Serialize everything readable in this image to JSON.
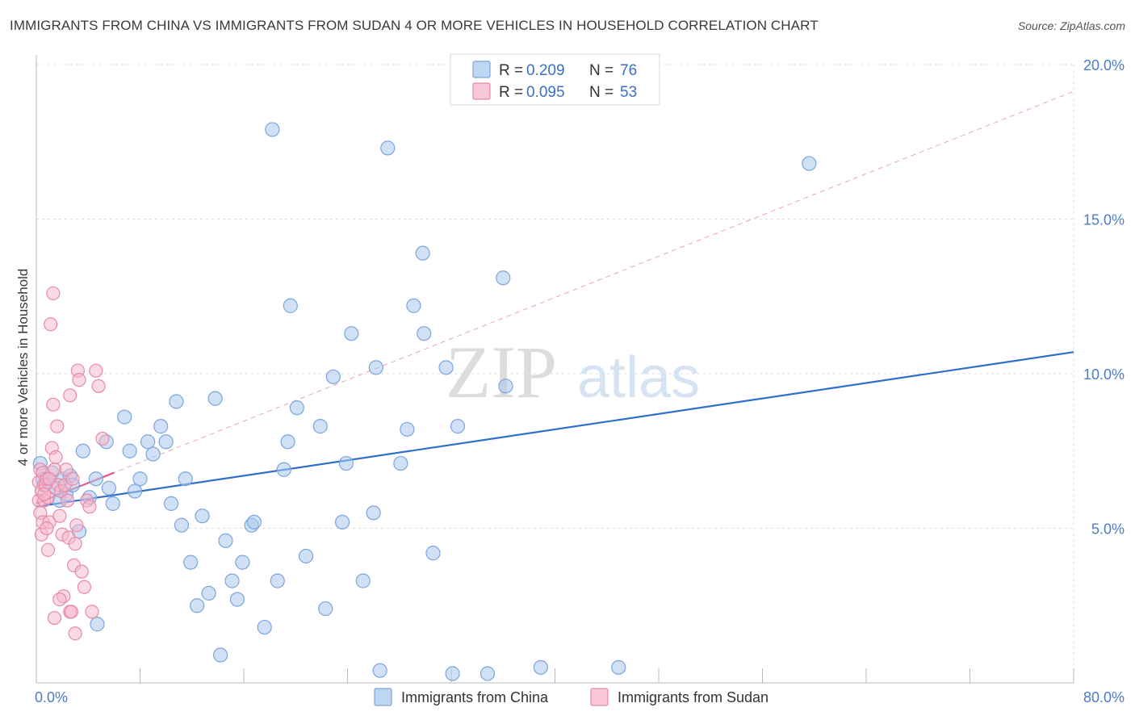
{
  "header": {
    "title": "IMMIGRANTS FROM CHINA VS IMMIGRANTS FROM SUDAN 4 OR MORE VEHICLES IN HOUSEHOLD CORRELATION CHART",
    "source": "Source: ZipAtlas.com"
  },
  "watermark": {
    "zip": "ZIP",
    "atlas": "atlas"
  },
  "colors": {
    "china_fill": "#a9c8ee",
    "china_stroke": "#7aa5dd",
    "china_line": "#2f6fcb",
    "sudan_fill": "#f6b6ca",
    "sudan_stroke": "#e889a8",
    "sudan_line": "#e0588a",
    "grid": "#dddddd",
    "tick_label": "#4a7cc7"
  },
  "legend": {
    "rows": [
      {
        "r_label": "R = ",
        "r_value": "0.209",
        "n_label": "N = ",
        "n_value": "76"
      },
      {
        "r_label": "R = ",
        "r_value": "0.095",
        "n_label": "N = ",
        "n_value": "53"
      }
    ]
  },
  "bottom_legend": [
    "Immigrants from China",
    "Immigrants from Sudan"
  ],
  "chart_data": {
    "type": "scatter",
    "title": "IMMIGRANTS FROM CHINA VS IMMIGRANTS FROM SUDAN 4 OR MORE VEHICLES IN HOUSEHOLD CORRELATION CHART",
    "xlabel": "",
    "ylabel": "4 or more Vehicles in Household",
    "xlim": [
      0,
      80
    ],
    "ylim": [
      0,
      20
    ],
    "x_tick_labels": [
      {
        "value": 0,
        "label": "0.0%"
      },
      {
        "value": 80,
        "label": "80.0%"
      }
    ],
    "y_tick_labels": [
      {
        "value": 5,
        "label": "5.0%"
      },
      {
        "value": 10,
        "label": "10.0%"
      },
      {
        "value": 15,
        "label": "15.0%"
      },
      {
        "value": 20,
        "label": "20.0%"
      }
    ],
    "grid": true,
    "legend_position": "top-center",
    "series": [
      {
        "name": "Immigrants from China",
        "r": 0.209,
        "n": 76,
        "trend": {
          "x": [
            0,
            80
          ],
          "y": [
            5.7,
            10.7
          ]
        },
        "points": [
          [
            0.3,
            7.1
          ],
          [
            0.5,
            6.6
          ],
          [
            0.6,
            6.4
          ],
          [
            1.2,
            6.8
          ],
          [
            1.5,
            6.3
          ],
          [
            1.8,
            5.9
          ],
          [
            2.0,
            6.6
          ],
          [
            2.3,
            6.1
          ],
          [
            2.6,
            6.7
          ],
          [
            2.8,
            6.4
          ],
          [
            3.3,
            4.9
          ],
          [
            3.6,
            7.5
          ],
          [
            4.1,
            6.0
          ],
          [
            4.6,
            6.6
          ],
          [
            5.4,
            7.8
          ],
          [
            5.6,
            6.3
          ],
          [
            5.9,
            5.8
          ],
          [
            6.8,
            8.6
          ],
          [
            7.2,
            7.5
          ],
          [
            7.6,
            6.2
          ],
          [
            8.0,
            6.6
          ],
          [
            8.6,
            7.8
          ],
          [
            9.0,
            7.4
          ],
          [
            9.6,
            8.3
          ],
          [
            10.0,
            7.8
          ],
          [
            10.4,
            5.8
          ],
          [
            10.8,
            9.1
          ],
          [
            11.2,
            5.1
          ],
          [
            11.5,
            6.6
          ],
          [
            11.9,
            3.9
          ],
          [
            12.4,
            2.5
          ],
          [
            12.8,
            5.4
          ],
          [
            13.3,
            2.9
          ],
          [
            13.8,
            9.2
          ],
          [
            14.2,
            0.9
          ],
          [
            14.6,
            4.6
          ],
          [
            15.1,
            3.3
          ],
          [
            15.5,
            2.7
          ],
          [
            15.9,
            3.9
          ],
          [
            16.6,
            5.1
          ],
          [
            16.8,
            5.2
          ],
          [
            17.6,
            1.8
          ],
          [
            18.2,
            17.9
          ],
          [
            18.6,
            3.3
          ],
          [
            19.1,
            6.9
          ],
          [
            19.4,
            7.8
          ],
          [
            19.6,
            12.2
          ],
          [
            20.1,
            8.9
          ],
          [
            20.8,
            4.1
          ],
          [
            21.9,
            8.3
          ],
          [
            22.3,
            2.4
          ],
          [
            22.9,
            9.9
          ],
          [
            23.6,
            5.2
          ],
          [
            23.9,
            7.1
          ],
          [
            24.3,
            11.3
          ],
          [
            25.2,
            3.3
          ],
          [
            26.0,
            5.5
          ],
          [
            26.2,
            10.2
          ],
          [
            26.5,
            0.4
          ],
          [
            27.1,
            17.3
          ],
          [
            28.1,
            7.1
          ],
          [
            28.6,
            8.2
          ],
          [
            29.1,
            12.2
          ],
          [
            29.8,
            13.9
          ],
          [
            29.9,
            11.3
          ],
          [
            30.6,
            4.2
          ],
          [
            31.6,
            10.2
          ],
          [
            32.1,
            0.3
          ],
          [
            32.5,
            8.3
          ],
          [
            34.8,
            0.3
          ],
          [
            36.0,
            13.1
          ],
          [
            36.2,
            9.6
          ],
          [
            38.9,
            0.5
          ],
          [
            44.9,
            0.5
          ],
          [
            59.6,
            16.8
          ],
          [
            4.7,
            1.9
          ]
        ]
      },
      {
        "name": "Immigrants from Sudan",
        "r": 0.095,
        "n": 53,
        "trend": {
          "x": [
            0,
            6.0
          ],
          "y": [
            5.8,
            6.8
          ]
        },
        "points": [
          [
            0.2,
            6.5
          ],
          [
            0.2,
            5.9
          ],
          [
            0.3,
            6.9
          ],
          [
            0.3,
            5.5
          ],
          [
            0.4,
            6.2
          ],
          [
            0.4,
            4.8
          ],
          [
            0.5,
            5.2
          ],
          [
            0.5,
            6.8
          ],
          [
            0.6,
            5.9
          ],
          [
            0.7,
            6.4
          ],
          [
            0.8,
            6.6
          ],
          [
            0.9,
            6.0
          ],
          [
            0.9,
            4.3
          ],
          [
            1.0,
            5.2
          ],
          [
            1.1,
            11.6
          ],
          [
            1.2,
            7.6
          ],
          [
            1.3,
            12.6
          ],
          [
            1.3,
            9.0
          ],
          [
            1.4,
            6.9
          ],
          [
            1.5,
            7.3
          ],
          [
            1.6,
            8.3
          ],
          [
            1.7,
            6.4
          ],
          [
            1.8,
            5.4
          ],
          [
            1.9,
            6.2
          ],
          [
            2.0,
            4.8
          ],
          [
            2.1,
            2.8
          ],
          [
            2.2,
            6.4
          ],
          [
            2.3,
            6.9
          ],
          [
            2.4,
            5.9
          ],
          [
            2.5,
            4.7
          ],
          [
            2.6,
            2.3
          ],
          [
            2.7,
            2.3
          ],
          [
            2.8,
            6.6
          ],
          [
            2.9,
            3.8
          ],
          [
            3.0,
            4.5
          ],
          [
            3.1,
            5.1
          ],
          [
            3.2,
            10.1
          ],
          [
            3.3,
            9.8
          ],
          [
            3.5,
            3.6
          ],
          [
            3.7,
            3.1
          ],
          [
            3.9,
            5.9
          ],
          [
            4.1,
            5.7
          ],
          [
            4.3,
            2.3
          ],
          [
            4.6,
            10.1
          ],
          [
            4.8,
            9.6
          ],
          [
            5.1,
            7.9
          ],
          [
            3.0,
            1.6
          ],
          [
            2.6,
            9.3
          ],
          [
            1.8,
            2.7
          ],
          [
            1.4,
            2.1
          ],
          [
            0.8,
            5.0
          ],
          [
            1.0,
            6.6
          ],
          [
            0.6,
            6.1
          ]
        ]
      }
    ]
  }
}
